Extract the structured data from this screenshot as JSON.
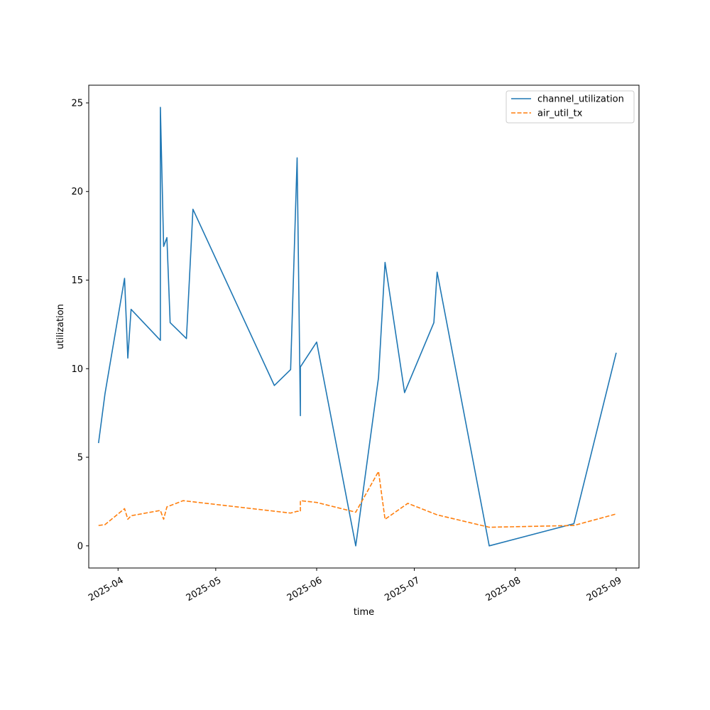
{
  "chart_data": {
    "type": "line",
    "title": "",
    "xlabel": "time",
    "ylabel": "utilization",
    "x_axis_type": "date",
    "xlim": [
      "2025-03-23",
      "2025-09-08"
    ],
    "ylim": [
      -1.25,
      26
    ],
    "x_ticks": [
      "2025-04-01",
      "2025-05-01",
      "2025-06-01",
      "2025-07-01",
      "2025-08-01",
      "2025-09-01"
    ],
    "x_tick_labels": [
      "2025-04",
      "2025-05",
      "2025-06",
      "2025-07",
      "2025-08",
      "2025-09"
    ],
    "y_ticks": [
      0,
      5,
      10,
      15,
      20,
      25
    ],
    "y_tick_labels": [
      "0",
      "5",
      "10",
      "15",
      "20",
      "25"
    ],
    "grid": false,
    "legend_position": "top-right",
    "series": [
      {
        "name": "channel_utilization",
        "color": "#1f77b4",
        "style": "solid",
        "points": [
          [
            "2025-03-26",
            5.8
          ],
          [
            "2025-03-28",
            8.6
          ],
          [
            "2025-04-03",
            15.1
          ],
          [
            "2025-04-04",
            10.6
          ],
          [
            "2025-04-05",
            13.35
          ],
          [
            "2025-04-14",
            11.6
          ],
          [
            "2025-04-14",
            24.75
          ],
          [
            "2025-04-15",
            16.9
          ],
          [
            "2025-04-16",
            17.4
          ],
          [
            "2025-04-17",
            12.6
          ],
          [
            "2025-04-22",
            11.7
          ],
          [
            "2025-04-24",
            19.0
          ],
          [
            "2025-05-19",
            9.05
          ],
          [
            "2025-05-24",
            9.95
          ],
          [
            "2025-05-26",
            21.9
          ],
          [
            "2025-05-27",
            7.35
          ],
          [
            "2025-05-27",
            10.1
          ],
          [
            "2025-06-01",
            11.5
          ],
          [
            "2025-06-13",
            0.0
          ],
          [
            "2025-06-20",
            9.5
          ],
          [
            "2025-06-22",
            16.0
          ],
          [
            "2025-06-28",
            8.65
          ],
          [
            "2025-07-07",
            12.6
          ],
          [
            "2025-07-08",
            15.45
          ],
          [
            "2025-07-24",
            0.0
          ],
          [
            "2025-08-19",
            1.25
          ],
          [
            "2025-09-01",
            10.9
          ]
        ]
      },
      {
        "name": "air_util_tx",
        "color": "#ff7f0e",
        "style": "dashed",
        "points": [
          [
            "2025-03-26",
            1.15
          ],
          [
            "2025-03-28",
            1.2
          ],
          [
            "2025-04-03",
            2.1
          ],
          [
            "2025-04-04",
            1.5
          ],
          [
            "2025-04-05",
            1.7
          ],
          [
            "2025-04-14",
            2.0
          ],
          [
            "2025-04-15",
            1.5
          ],
          [
            "2025-04-16",
            2.2
          ],
          [
            "2025-04-21",
            2.55
          ],
          [
            "2025-05-24",
            1.85
          ],
          [
            "2025-05-26",
            1.95
          ],
          [
            "2025-05-27",
            1.95
          ],
          [
            "2025-05-27",
            2.55
          ],
          [
            "2025-06-01",
            2.45
          ],
          [
            "2025-06-13",
            1.9
          ],
          [
            "2025-06-20",
            4.2
          ],
          [
            "2025-06-22",
            1.5
          ],
          [
            "2025-06-29",
            2.4
          ],
          [
            "2025-07-08",
            1.75
          ],
          [
            "2025-07-24",
            1.05
          ],
          [
            "2025-08-19",
            1.15
          ],
          [
            "2025-09-01",
            1.8
          ]
        ]
      }
    ]
  }
}
